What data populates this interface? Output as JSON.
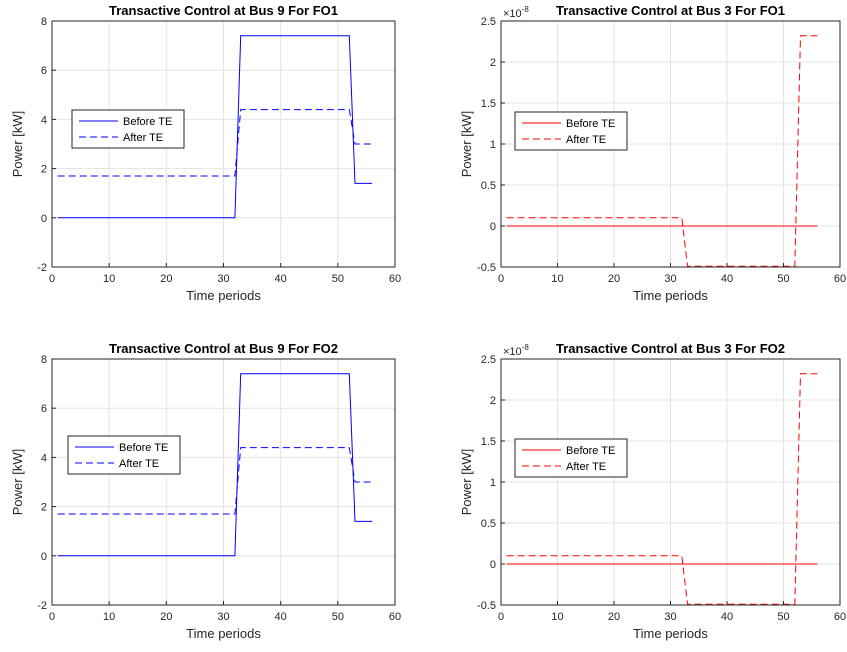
{
  "chart_data": [
    {
      "type": "line",
      "title": "Transactive Control at Bus 9 For FO1",
      "xlabel": "Time periods",
      "ylabel": "Power [kW]",
      "xlim": [
        0,
        60
      ],
      "ylim": [
        -2,
        8
      ],
      "xticks": [
        0,
        10,
        20,
        30,
        40,
        50,
        60
      ],
      "yticks": [
        -2,
        0,
        2,
        4,
        6,
        8
      ],
      "exponent": "",
      "grid": true,
      "legend_position": "left",
      "series": [
        {
          "name": "Before TE",
          "color": "#0000ff",
          "dash": "solid",
          "x": [
            1,
            32,
            33,
            52,
            53,
            56
          ],
          "y": [
            0,
            0,
            7.4,
            7.4,
            1.4,
            1.4
          ]
        },
        {
          "name": "After TE",
          "color": "#0000ff",
          "dash": "dashed",
          "x": [
            1,
            32,
            33,
            52,
            53,
            56
          ],
          "y": [
            1.7,
            1.7,
            4.4,
            4.4,
            3.0,
            3.0
          ]
        }
      ]
    },
    {
      "type": "line",
      "title": "Transactive Control at Bus 3 For FO1",
      "xlabel": "Time periods",
      "ylabel": "Power [kW]",
      "xlim": [
        0,
        60
      ],
      "ylim": [
        -0.5,
        2.5
      ],
      "xticks": [
        0,
        10,
        20,
        30,
        40,
        50,
        60
      ],
      "yticks": [
        -0.5,
        0,
        0.5,
        1,
        1.5,
        2,
        2.5
      ],
      "exponent": "×10",
      "exponent_power": "-8",
      "grid": true,
      "legend_position": "left",
      "series": [
        {
          "name": "Before TE",
          "color": "#ff0000",
          "dash": "solid",
          "x": [
            1,
            56
          ],
          "y": [
            0,
            0
          ]
        },
        {
          "name": "After TE",
          "color": "#ff0000",
          "dash": "dashed",
          "x": [
            1,
            32,
            33,
            52,
            53,
            56
          ],
          "y": [
            0.1,
            0.1,
            -0.49,
            -0.49,
            2.32,
            2.32
          ]
        }
      ]
    },
    {
      "type": "line",
      "title": "Transactive Control at Bus 9 For FO2",
      "xlabel": "Time periods",
      "ylabel": "Power [kW]",
      "xlim": [
        0,
        60
      ],
      "ylim": [
        -2,
        8
      ],
      "xticks": [
        0,
        10,
        20,
        30,
        40,
        50,
        60
      ],
      "yticks": [
        -2,
        0,
        2,
        4,
        6,
        8
      ],
      "exponent": "",
      "grid": true,
      "legend_position": "left",
      "series": [
        {
          "name": "Before TE",
          "color": "#0000ff",
          "dash": "solid",
          "x": [
            1,
            32,
            33,
            52,
            53,
            56
          ],
          "y": [
            0,
            0,
            7.4,
            7.4,
            1.4,
            1.4
          ]
        },
        {
          "name": "After TE",
          "color": "#0000ff",
          "dash": "dashed",
          "x": [
            1,
            32,
            33,
            52,
            53,
            56
          ],
          "y": [
            1.7,
            1.7,
            4.4,
            4.4,
            3.0,
            3.0
          ]
        }
      ]
    },
    {
      "type": "line",
      "title": "Transactive Control at Bus 3 For FO2",
      "xlabel": "Time periods",
      "ylabel": "Power [kW]",
      "xlim": [
        0,
        60
      ],
      "ylim": [
        -0.5,
        2.5
      ],
      "xticks": [
        0,
        10,
        20,
        30,
        40,
        50,
        60
      ],
      "yticks": [
        -0.5,
        0,
        0.5,
        1,
        1.5,
        2,
        2.5
      ],
      "exponent": "×10",
      "exponent_power": "-8",
      "grid": true,
      "legend_position": "left",
      "series": [
        {
          "name": "Before TE",
          "color": "#ff0000",
          "dash": "solid",
          "x": [
            1,
            56
          ],
          "y": [
            0,
            0
          ]
        },
        {
          "name": "After TE",
          "color": "#ff0000",
          "dash": "dashed",
          "x": [
            1,
            32,
            33,
            52,
            53,
            56
          ],
          "y": [
            0.1,
            0.1,
            -0.49,
            -0.49,
            2.32,
            2.32
          ]
        }
      ]
    }
  ]
}
